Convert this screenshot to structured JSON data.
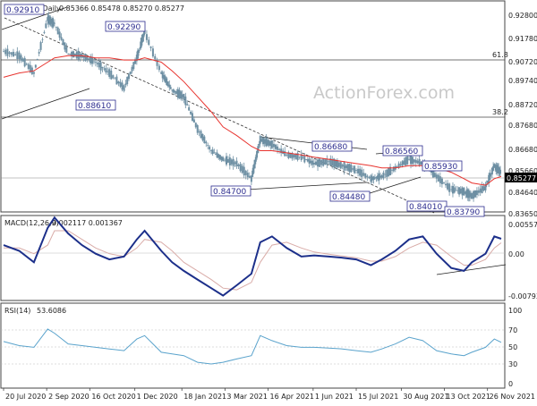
{
  "chart_data": [
    {
      "type": "candlestick",
      "title": "EURGBP,Daily",
      "header_values": "0.85366 0.85478 0.85270 0.85277",
      "ylim": [
        0.835,
        0.932
      ],
      "y_ticks": [
        "0.92800",
        "0.91780",
        "0.90720",
        "0.89740",
        "0.88720",
        "0.87680",
        "0.86680",
        "0.85660",
        "0.84640",
        "0.83650"
      ],
      "last_price": "0.85277",
      "fib_levels": [
        {
          "label": "61.8",
          "value": 0.9068
        },
        {
          "label": "38.2",
          "value": 0.8776
        }
      ],
      "price_labels": [
        {
          "text": "0.92910"
        },
        {
          "text": "0.92290"
        },
        {
          "text": "0.88610"
        },
        {
          "text": "0.84700"
        },
        {
          "text": "0.86680"
        },
        {
          "text": "0.84480"
        },
        {
          "text": "0.86560"
        },
        {
          "text": "0.85930"
        },
        {
          "text": "0.84010"
        },
        {
          "text": "0.83790"
        }
      ],
      "x_tick_labels": [
        "20 Jul 2020",
        "2 Sep 2020",
        "16 Oct 2020",
        "1 Dec 2020",
        "18 Jan 2021",
        "3 Mar 2021",
        "16 Apr 2021",
        "1 Jun 2021",
        "15 Jul 2021",
        "30 Aug 2021",
        "13 Oct 2021",
        "26 Nov 2021"
      ],
      "close_series": {
        "dates": [
          "2020-07-20",
          "2020-08-05",
          "2020-08-20",
          "2020-09-03",
          "2020-09-10",
          "2020-09-24",
          "2020-10-08",
          "2020-10-22",
          "2020-11-05",
          "2020-11-20",
          "2020-12-03",
          "2020-12-11",
          "2020-12-28",
          "2021-01-08",
          "2021-01-20",
          "2021-02-03",
          "2021-02-17",
          "2021-03-01",
          "2021-03-15",
          "2021-03-30",
          "2021-04-08",
          "2021-04-20",
          "2021-05-05",
          "2021-05-20",
          "2021-06-02",
          "2021-06-17",
          "2021-07-01",
          "2021-07-15",
          "2021-07-30",
          "2021-08-10",
          "2021-08-24",
          "2021-09-07",
          "2021-09-21",
          "2021-10-05",
          "2021-10-20",
          "2021-11-02",
          "2021-11-10",
          "2021-11-24",
          "2021-12-03",
          "2021-12-10"
        ],
        "values": [
          0.909,
          0.907,
          0.899,
          0.924,
          0.922,
          0.908,
          0.907,
          0.904,
          0.899,
          0.892,
          0.906,
          0.918,
          0.899,
          0.891,
          0.888,
          0.873,
          0.863,
          0.859,
          0.857,
          0.85,
          0.868,
          0.866,
          0.861,
          0.86,
          0.857,
          0.858,
          0.856,
          0.854,
          0.85,
          0.851,
          0.855,
          0.859,
          0.857,
          0.851,
          0.845,
          0.844,
          0.842,
          0.846,
          0.856,
          0.8528
        ]
      },
      "sma_series": {
        "values": [
          0.897,
          0.899,
          0.9,
          0.904,
          0.906,
          0.907,
          0.907,
          0.906,
          0.906,
          0.905,
          0.905,
          0.906,
          0.904,
          0.9,
          0.895,
          0.888,
          0.881,
          0.874,
          0.87,
          0.865,
          0.863,
          0.863,
          0.862,
          0.861,
          0.86,
          0.859,
          0.858,
          0.857,
          0.856,
          0.855,
          0.855,
          0.856,
          0.856,
          0.855,
          0.853,
          0.85,
          0.848,
          0.847,
          0.85,
          0.851
        ]
      }
    },
    {
      "type": "line",
      "title": "MACD(12,26,9)",
      "header_values": "0.002117 0.001367",
      "y_ticks": [
        "0.005579",
        "0.00",
        "-0.007931"
      ],
      "ylim": [
        -0.0085,
        0.006
      ],
      "macd_values": [
        0.001,
        0.0,
        -0.002,
        0.004,
        0.0058,
        0.003,
        0.001,
        -0.0005,
        -0.0015,
        -0.001,
        0.002,
        0.0035,
        0.0,
        -0.002,
        -0.0035,
        -0.005,
        -0.0065,
        -0.0078,
        -0.006,
        -0.004,
        0.0015,
        0.0025,
        0.0005,
        -0.001,
        -0.0008,
        -0.001,
        -0.0012,
        -0.0015,
        -0.0025,
        -0.0015,
        0.0,
        0.002,
        0.0025,
        -0.0005,
        -0.003,
        -0.0035,
        -0.002,
        -0.0005,
        0.0025,
        0.0021
      ],
      "signal_values": [
        0.0005,
        0.0005,
        -0.0005,
        0.001,
        0.0035,
        0.0035,
        0.002,
        0.0005,
        -0.0005,
        -0.001,
        0.0005,
        0.002,
        0.0015,
        0.0,
        -0.002,
        -0.0035,
        -0.005,
        -0.0065,
        -0.0068,
        -0.0055,
        -0.002,
        0.001,
        0.0015,
        0.0005,
        -0.0002,
        -0.0006,
        -0.0009,
        -0.0012,
        -0.0018,
        -0.0018,
        -0.001,
        0.0005,
        0.0015,
        0.001,
        -0.001,
        -0.0025,
        -0.0025,
        -0.0015,
        0.0005,
        0.0014
      ]
    },
    {
      "type": "line",
      "title": "RSI(14)",
      "header_values": "53.6086",
      "y_ticks": [
        "100",
        "70",
        "50",
        "30",
        "0"
      ],
      "ylim": [
        0,
        100
      ],
      "rsi_values": [
        55,
        50,
        48,
        70,
        65,
        52,
        50,
        48,
        46,
        44,
        58,
        62,
        42,
        40,
        38,
        30,
        28,
        30,
        34,
        38,
        62,
        56,
        50,
        48,
        48,
        47,
        46,
        44,
        42,
        46,
        52,
        60,
        56,
        44,
        40,
        38,
        42,
        48,
        58,
        54
      ]
    }
  ],
  "watermark": "ActionForex.com",
  "colors": {
    "candles": "#6d8fa3",
    "sma": "#e8332e",
    "macd": "#1c2f8a",
    "signal": "#d9aca8",
    "rsi": "#5aa3cc",
    "label_border": "#2d2d8f"
  }
}
